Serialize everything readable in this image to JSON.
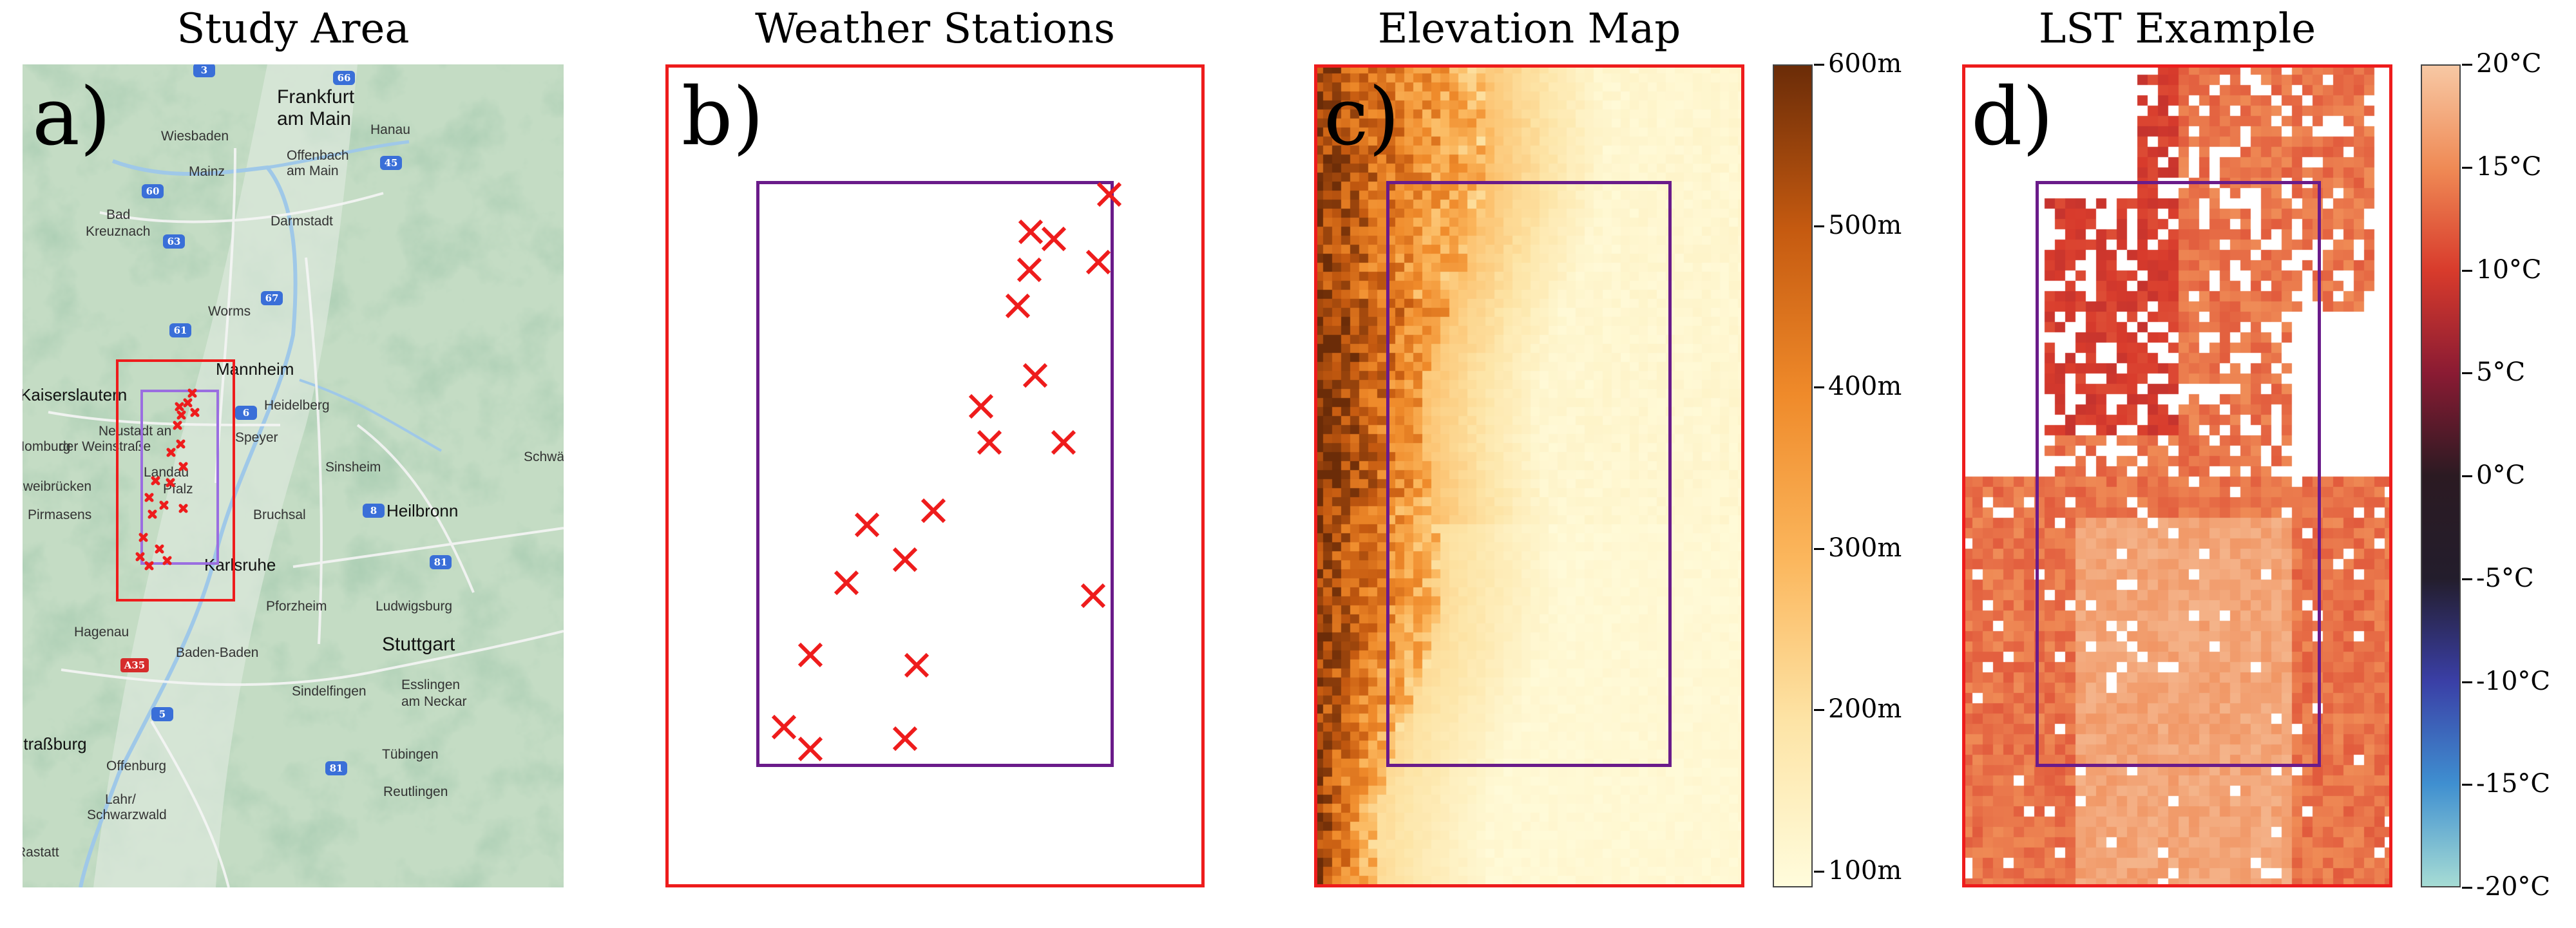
{
  "panels": [
    {
      "title": "Study Area",
      "letter": "a)"
    },
    {
      "title": "Weather Stations",
      "letter": "b)"
    },
    {
      "title": "Elevation Map",
      "letter": "c)"
    },
    {
      "title": "LST Example",
      "letter": "d)"
    }
  ],
  "map": {
    "cities": [
      "Frankfurt",
      "am Main",
      "Hanau",
      "Wiesbaden",
      "Offenbach",
      "am Main",
      "Mainz",
      "Bad",
      "Kreuznach",
      "Darmstadt",
      "Worms",
      "Kaiserslautern",
      "Mannheim",
      "Heidelberg",
      "Neustadt an",
      "der Weinstraße",
      "Speyer",
      "Landau",
      "Pfalz",
      "Sinsheim",
      "Homburg",
      "Zweibrücken",
      "Pirmasens",
      "Bruchsal",
      "Heilbronn",
      "Schwäbi",
      "Karlsruhe",
      "Pforzheim",
      "Ludwigsburg",
      "Hagenau",
      "Stuttgart",
      "Baden-Baden",
      "Sindelfingen",
      "Esslingen",
      "am Neckar",
      "Straßburg",
      "Offenburg",
      "Tübingen",
      "Lahr/",
      "Schwarzwald",
      "Reutlingen",
      "Rastatt"
    ],
    "roads": [
      "3",
      "60",
      "66",
      "45",
      "63",
      "67",
      "61",
      "6",
      "8",
      "81",
      "5",
      "A35",
      "81"
    ]
  },
  "elevation_colorbar": {
    "ticks": [
      "600m",
      "500m",
      "400m",
      "300m",
      "200m",
      "100m"
    ],
    "values": [
      600,
      500,
      400,
      300,
      200,
      100
    ],
    "range": [
      90,
      600
    ],
    "colors": [
      "#fffcdc",
      "#fde4a6",
      "#fbb65c",
      "#ef8a2a",
      "#c55a10",
      "#6b2c08"
    ]
  },
  "lst_colorbar": {
    "ticks": [
      "20°C",
      "15°C",
      "10°C",
      "5°C",
      "0°C",
      "-5°C",
      "-10°C",
      "-15°C",
      "-20°C"
    ],
    "values": [
      20,
      15,
      10,
      5,
      0,
      -5,
      -10,
      -15,
      -20
    ],
    "range": [
      -20,
      20
    ],
    "colors": [
      "#a6dcd4",
      "#3f8fd0",
      "#3a3fa6",
      "#231d2c",
      "#2b1a22",
      "#8a1b33",
      "#d83b2c",
      "#ef8a55",
      "#f7c8a4"
    ]
  },
  "colors": {
    "region_outline": "#ee1c1c",
    "station_box": "#6a1b8a",
    "station_marker": "#ee1c1c"
  }
}
